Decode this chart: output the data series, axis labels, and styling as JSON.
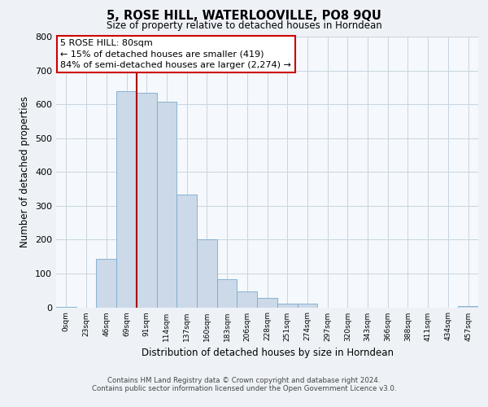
{
  "title": "5, ROSE HILL, WATERLOOVILLE, PO8 9QU",
  "subtitle": "Size of property relative to detached houses in Horndean",
  "xlabel": "Distribution of detached houses by size in Horndean",
  "ylabel": "Number of detached properties",
  "bin_labels": [
    "0sqm",
    "23sqm",
    "46sqm",
    "69sqm",
    "91sqm",
    "114sqm",
    "137sqm",
    "160sqm",
    "183sqm",
    "206sqm",
    "228sqm",
    "251sqm",
    "274sqm",
    "297sqm",
    "320sqm",
    "343sqm",
    "366sqm",
    "388sqm",
    "411sqm",
    "434sqm",
    "457sqm"
  ],
  "bar_heights": [
    2,
    0,
    143,
    638,
    634,
    607,
    333,
    200,
    84,
    46,
    27,
    10,
    12,
    0,
    0,
    0,
    0,
    0,
    0,
    0,
    4
  ],
  "bar_color": "#ccd9e8",
  "bar_edge_color": "#7aaace",
  "marker_line_bin_index": 4,
  "marker_line_color": "#aa0000",
  "annotation_line1": "5 ROSE HILL: 80sqm",
  "annotation_line2": "← 15% of detached houses are smaller (419)",
  "annotation_line3": "84% of semi-detached houses are larger (2,274) →",
  "annotation_box_color": "#ffffff",
  "annotation_box_edge": "#cc0000",
  "ylim": [
    0,
    800
  ],
  "yticks": [
    0,
    100,
    200,
    300,
    400,
    500,
    600,
    700,
    800
  ],
  "footer_line1": "Contains HM Land Registry data © Crown copyright and database right 2024.",
  "footer_line2": "Contains public sector information licensed under the Open Government Licence v3.0.",
  "bg_color": "#eef2f7",
  "plot_bg_color": "#f5f8fc",
  "grid_color": "#c8d4e0"
}
